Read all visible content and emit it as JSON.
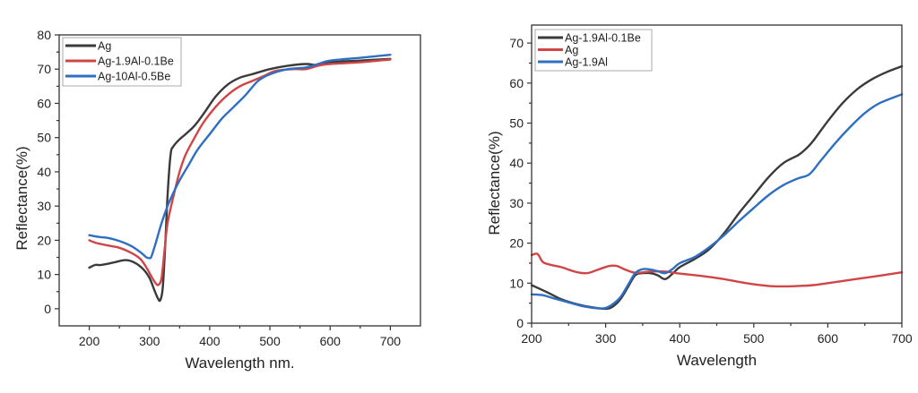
{
  "chart_data": [
    {
      "type": "line",
      "title": "",
      "xlabel": "Wavelength nm.",
      "ylabel": "Reflectance(%)",
      "xlim": [
        150,
        750
      ],
      "ylim": [
        -5,
        80
      ],
      "xticks": [
        200,
        300,
        400,
        500,
        600,
        700
      ],
      "yticks": [
        0,
        10,
        20,
        30,
        40,
        50,
        60,
        70,
        80
      ],
      "grid": false,
      "legend_position": "top-left",
      "series": [
        {
          "name": "Ag",
          "color": "#3a3a3a",
          "x": [
            200,
            210,
            220,
            240,
            260,
            275,
            290,
            300,
            308,
            314,
            318,
            322,
            326,
            330,
            335,
            340,
            350,
            360,
            375,
            390,
            410,
            430,
            450,
            470,
            500,
            530,
            560,
            580,
            600,
            650,
            700
          ],
          "y": [
            12,
            12.8,
            12.8,
            13.5,
            14.2,
            13.5,
            11.5,
            9,
            5.5,
            3,
            2.5,
            6,
            18,
            33,
            45,
            47.5,
            49.5,
            51,
            53.5,
            57,
            62,
            65.5,
            67.5,
            68.5,
            70,
            71,
            71.5,
            71.2,
            72,
            72.5,
            73
          ]
        },
        {
          "name": "Ag-1.9Al-0.1Be",
          "color": "#d04545",
          "x": [
            200,
            210,
            230,
            250,
            270,
            285,
            295,
            303,
            310,
            315,
            320,
            325,
            330,
            340,
            350,
            360,
            375,
            390,
            410,
            430,
            450,
            470,
            490,
            510,
            540,
            560,
            580,
            600,
            650,
            700
          ],
          "y": [
            20,
            19.3,
            18.5,
            17.8,
            16.3,
            14.5,
            12,
            9.5,
            7.5,
            7,
            9,
            17,
            25,
            33,
            40,
            45,
            50,
            54.5,
            59,
            62.5,
            65,
            66.5,
            68,
            69.5,
            70,
            70,
            71,
            71.5,
            72,
            72.8
          ]
        },
        {
          "name": "Ag-10Al-0.5Be",
          "color": "#2e6fc2",
          "x": [
            200,
            215,
            230,
            250,
            270,
            285,
            295,
            300,
            303,
            310,
            320,
            330,
            340,
            350,
            365,
            380,
            400,
            420,
            440,
            460,
            480,
            500,
            530,
            560,
            580,
            600,
            650,
            700
          ],
          "y": [
            21.5,
            21,
            20.7,
            19.8,
            18.3,
            16.5,
            15,
            14.8,
            15.2,
            19,
            25,
            30,
            34,
            37.5,
            42,
            46.5,
            51,
            55.5,
            59,
            62.5,
            66.5,
            68.5,
            70,
            70.5,
            71.5,
            72.5,
            73.3,
            74.2
          ]
        }
      ]
    },
    {
      "type": "line",
      "title": "",
      "xlabel": "Wavelength",
      "ylabel": "Reflectance(%)",
      "xlim": [
        200,
        700
      ],
      "ylim": [
        0,
        74.5
      ],
      "xticks": [
        200,
        300,
        400,
        500,
        600,
        700
      ],
      "yticks": [
        0,
        10,
        20,
        30,
        40,
        50,
        60,
        70
      ],
      "grid": false,
      "legend_position": "top-left",
      "series": [
        {
          "name": "Ag-1.9Al-0.1Be",
          "color": "#3a3a3a",
          "x": [
            200,
            220,
            240,
            260,
            280,
            300,
            310,
            320,
            330,
            340,
            350,
            360,
            370,
            380,
            390,
            400,
            420,
            440,
            460,
            480,
            500,
            520,
            540,
            560,
            570,
            580,
            600,
            620,
            640,
            660,
            680,
            700
          ],
          "y": [
            9.5,
            7.8,
            6,
            4.8,
            4,
            3.6,
            4.2,
            6,
            9,
            12,
            12.5,
            12.5,
            12,
            11,
            12.3,
            14,
            16,
            18.5,
            22.5,
            27.5,
            32,
            36.5,
            40,
            42,
            43.5,
            45.5,
            50.5,
            55,
            58.5,
            61,
            62.8,
            64.2
          ]
        },
        {
          "name": "Ag",
          "color": "#d04545",
          "x": [
            200,
            208,
            215,
            225,
            240,
            260,
            275,
            290,
            305,
            315,
            325,
            340,
            360,
            380,
            400,
            430,
            460,
            490,
            520,
            540,
            560,
            580,
            600,
            630,
            660,
            700
          ],
          "y": [
            17,
            17.3,
            15.3,
            14.6,
            14,
            12.8,
            12.5,
            13.4,
            14.3,
            14.3,
            13.5,
            12.6,
            12.9,
            12.9,
            12.4,
            11.8,
            11,
            10,
            9.3,
            9.2,
            9.3,
            9.5,
            10,
            10.8,
            11.6,
            12.7
          ]
        },
        {
          "name": "Ag-1.9Al",
          "color": "#2e6fc2",
          "x": [
            200,
            215,
            230,
            250,
            270,
            290,
            300,
            310,
            320,
            330,
            340,
            350,
            360,
            370,
            380,
            390,
            400,
            420,
            440,
            460,
            480,
            500,
            520,
            540,
            560,
            575,
            590,
            610,
            630,
            650,
            670,
            700
          ],
          "y": [
            7.2,
            7,
            6.2,
            5.2,
            4.2,
            3.7,
            3.8,
            4.8,
            6.5,
            9.5,
            12.5,
            13.5,
            13.4,
            13,
            12.5,
            13.5,
            15,
            16.5,
            19,
            22,
            25.5,
            28.8,
            32,
            34.5,
            36.2,
            37.2,
            40.5,
            45,
            49,
            52.5,
            55,
            57.2
          ]
        }
      ]
    }
  ]
}
